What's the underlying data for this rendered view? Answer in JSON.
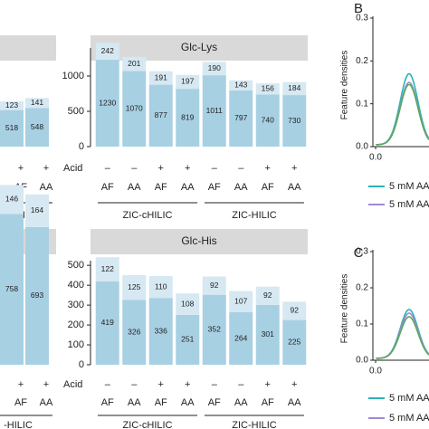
{
  "colors": {
    "bar_bottom": "#a8d0e3",
    "bar_top": "#d6e8f2",
    "facet_header": "#d9d9d9",
    "axis": "#222222",
    "inner_label": "#6d6d6d",
    "line_teal": "#2ab3b8",
    "line_purple": "#a586d6",
    "line_green": "#5da85a",
    "line_gray": "#8a8a8a"
  },
  "chart_data": [
    {
      "type": "bar",
      "stacked": true,
      "partial": true,
      "x_row_labels": [
        "+",
        "+"
      ],
      "categories": [
        "AF",
        "AA"
      ],
      "series": [
        {
          "values": [
            518,
            548
          ]
        },
        {
          "values": [
            123,
            141
          ]
        }
      ],
      "group_label": "-HILIC"
    },
    {
      "type": "bar",
      "stacked": true,
      "title": "Glc-Lys",
      "acid_label": "Acid",
      "acid": [
        "–",
        "–",
        "+",
        "+",
        "–",
        "–",
        "+",
        "+"
      ],
      "categories": [
        "AF",
        "AA",
        "AF",
        "AA",
        "AF",
        "AA",
        "AF",
        "AA"
      ],
      "groups": [
        "ZIC-cHILIC",
        "ZIC-HILIC"
      ],
      "series": [
        {
          "values": [
            1230,
            1070,
            877,
            819,
            1011,
            797,
            740,
            730
          ]
        },
        {
          "values": [
            242,
            201,
            191,
            197,
            190,
            143,
            156,
            184
          ]
        }
      ],
      "yticks": [
        "0",
        "500",
        "1000"
      ],
      "ylim": [
        0,
        1500
      ]
    },
    {
      "type": "bar",
      "stacked": true,
      "partial": true,
      "x_row_labels": [
        "+",
        "+"
      ],
      "categories": [
        "AF",
        "AA"
      ],
      "series": [
        {
          "values": [
            758,
            693
          ]
        },
        {
          "values": [
            146,
            164
          ]
        }
      ],
      "group_label": "-HILIC"
    },
    {
      "type": "bar",
      "stacked": true,
      "title": "Glc-His",
      "acid_label": "Acid",
      "acid": [
        "–",
        "–",
        "+",
        "+",
        "–",
        "–",
        "+",
        "+"
      ],
      "categories": [
        "AF",
        "AA",
        "AF",
        "AA",
        "AF",
        "AA",
        "AF",
        "AA"
      ],
      "groups": [
        "ZIC-cHILIC",
        "ZIC-HILIC"
      ],
      "series": [
        {
          "values": [
            419,
            326,
            336,
            251,
            352,
            264,
            301,
            225
          ]
        },
        {
          "values": [
            122,
            125,
            110,
            108,
            92,
            107,
            92,
            92
          ]
        }
      ],
      "yticks": [
        "0",
        "100",
        "200",
        "300",
        "400",
        "500"
      ],
      "ylim": [
        0,
        560
      ]
    },
    {
      "type": "line",
      "panel_letter": "B",
      "ylabel": "Feature densities",
      "yticks": [
        "0.0",
        "0.1",
        "0.2",
        "0.3"
      ],
      "xticks": [
        "0.0"
      ],
      "ylim": [
        0,
        0.3
      ],
      "series": [
        {
          "peak": 0.17
        },
        {
          "peak": 0.15
        },
        {
          "peak": 0.145
        }
      ],
      "legend": [
        "5 mM AA",
        "5 mM AA"
      ]
    },
    {
      "type": "line",
      "panel_letter": "C",
      "ylabel": "Feature densities",
      "yticks": [
        "0.0",
        "0.1",
        "0.2",
        "0.3"
      ],
      "xticks": [
        "0.0"
      ],
      "ylim": [
        0,
        0.3
      ],
      "series": [
        {
          "peak": 0.14
        },
        {
          "peak": 0.13
        },
        {
          "peak": 0.12
        }
      ],
      "legend": [
        "5 mM AA",
        "5 mM AA"
      ]
    }
  ]
}
